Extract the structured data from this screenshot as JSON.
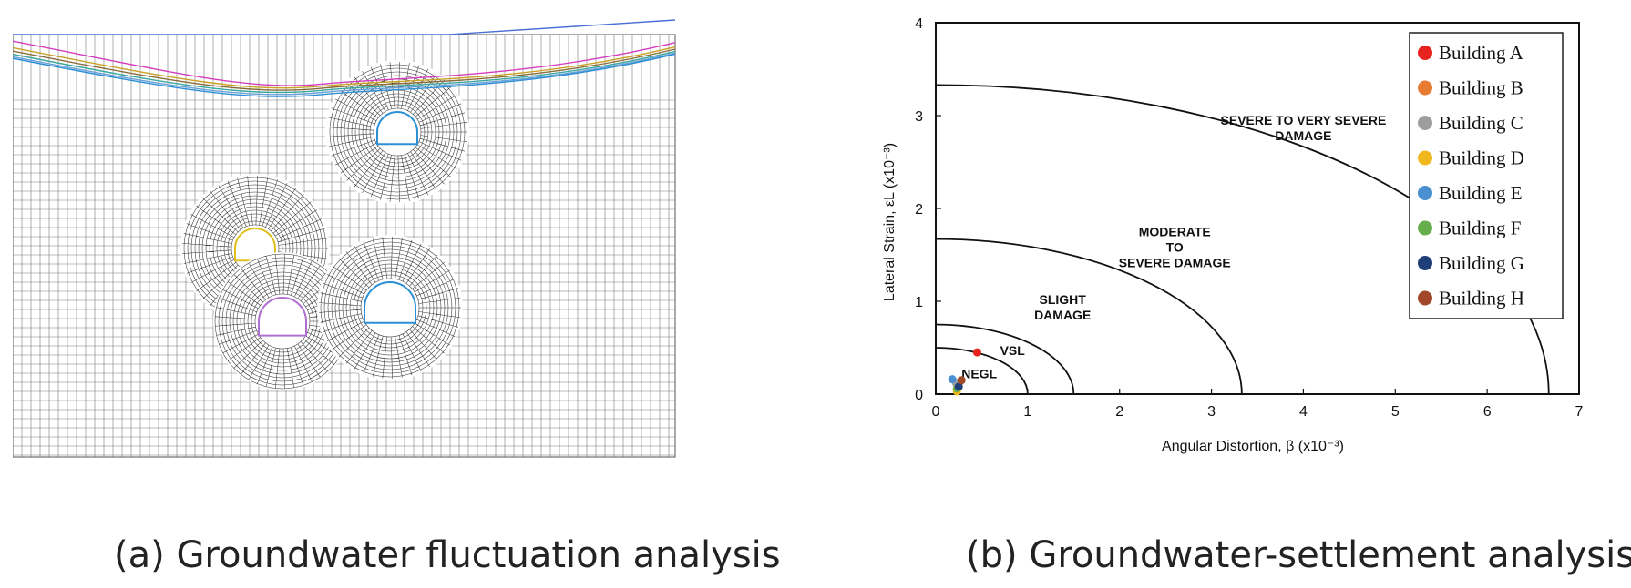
{
  "captions": {
    "a": "(a) Groundwater fluctuation analysis",
    "b": "(b) Groundwater-settlement analysis"
  },
  "mesh": {
    "groundwater_line_colors": [
      "#4a6fd6",
      "#d43fbf",
      "#c9a227",
      "#8a6d3b",
      "#3aa7a0",
      "#6aa0d8",
      "#2d8fd6"
    ],
    "grid_color": "#7a7a7a",
    "tunnel_lining_colors": [
      "#2b8fd6",
      "#e0c020",
      "#b070d0"
    ]
  },
  "chart_data": {
    "type": "scatter",
    "xlabel": "Angular Distortion, β (x10⁻³)",
    "ylabel": "Lateral Strain, εL (x10⁻³)",
    "xlim": [
      0,
      7
    ],
    "ylim": [
      0,
      4
    ],
    "xticks": [
      "0",
      "1",
      "2",
      "3",
      "4",
      "5",
      "6",
      "7"
    ],
    "yticks": [
      "0",
      "1",
      "2",
      "3",
      "4"
    ],
    "grid": false,
    "legend_position": "top-right",
    "boundaries": [
      {
        "beta_max": 1.0,
        "epsilon_max": 0.5
      },
      {
        "beta_max": 1.5,
        "epsilon_max": 0.75
      },
      {
        "beta_max": 3.33,
        "epsilon_max": 1.67
      },
      {
        "beta_max": 6.67,
        "epsilon_max": 3.33
      }
    ],
    "zones": [
      {
        "lines": [
          "NEGL"
        ],
        "x": 0.28,
        "y": 0.17
      },
      {
        "lines": [
          "VSL"
        ],
        "x": 0.7,
        "y": 0.42
      },
      {
        "lines": [
          "SLIGHT",
          "DAMAGE"
        ],
        "x": 1.38,
        "y": 0.97
      },
      {
        "lines": [
          "MODERATE",
          "TO",
          "SEVERE DAMAGE"
        ],
        "x": 2.6,
        "y": 1.7
      },
      {
        "lines": [
          "SEVERE TO VERY SEVERE",
          "DAMAGE"
        ],
        "x": 4.0,
        "y": 2.9
      }
    ],
    "series": [
      {
        "name": "Building A",
        "color": "#e8231e",
        "x": 0.45,
        "y": 0.45
      },
      {
        "name": "Building B",
        "color": "#e87b32",
        "x": 0.27,
        "y": 0.14
      },
      {
        "name": "Building C",
        "color": "#9e9e9e",
        "x": 0.22,
        "y": 0.12
      },
      {
        "name": "Building D",
        "color": "#f0b81c",
        "x": 0.23,
        "y": 0.03
      },
      {
        "name": "Building E",
        "color": "#4a8fd0",
        "x": 0.18,
        "y": 0.16
      },
      {
        "name": "Building F",
        "color": "#66ad4c",
        "x": 0.23,
        "y": 0.06
      },
      {
        "name": "Building G",
        "color": "#1f3f78",
        "x": 0.25,
        "y": 0.08
      },
      {
        "name": "Building H",
        "color": "#a2482a",
        "x": 0.28,
        "y": 0.15
      }
    ]
  }
}
